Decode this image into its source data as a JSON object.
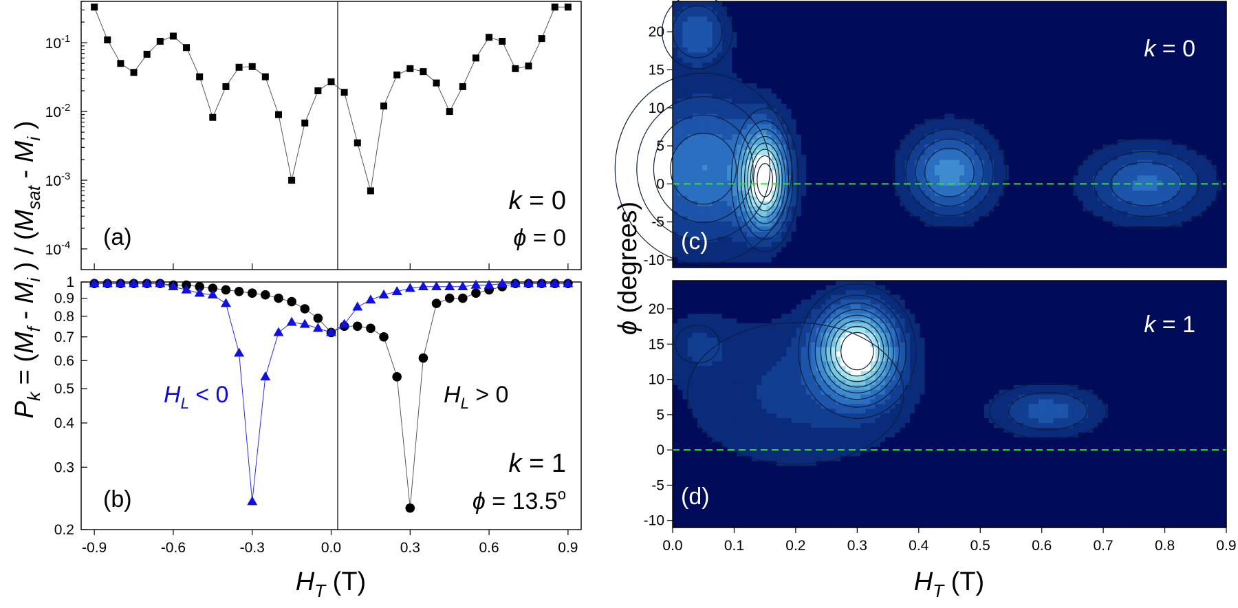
{
  "chart_data": [
    {
      "panel": "(a)",
      "type": "scatter",
      "yscale": "log",
      "xlim": [
        -0.95,
        0.95
      ],
      "ylim": [
        5e-05,
        0.4
      ],
      "yticks": [
        0.0001,
        0.001,
        0.01,
        0.1
      ],
      "ytick_labels": [
        {
          "base": "10",
          "exp": "-4"
        },
        {
          "base": "10",
          "exp": "-3"
        },
        {
          "base": "10",
          "exp": "-2"
        },
        {
          "base": "10",
          "exp": "-1"
        }
      ],
      "ylabel": {
        "pre": "(",
        "m1": "M",
        "s1": "sat",
        "mid": " - ",
        "m2": "M",
        "s2": "i",
        "post": " )"
      },
      "annotations": {
        "label": "(a)",
        "k_var": "k",
        "k_rest": " = 0",
        "phi_var": "ϕ",
        "phi_rest": " = 0"
      },
      "series": [
        {
          "name": "",
          "x": [
            -0.9,
            -0.85,
            -0.8,
            -0.75,
            -0.7,
            -0.65,
            -0.6,
            -0.55,
            -0.5,
            -0.45,
            -0.4,
            -0.35,
            -0.3,
            -0.25,
            -0.2,
            -0.15,
            -0.1,
            -0.05,
            0.0,
            0.05,
            0.1,
            0.15,
            0.2,
            0.25,
            0.3,
            0.35,
            0.4,
            0.45,
            0.5,
            0.55,
            0.6,
            0.65,
            0.7,
            0.75,
            0.8,
            0.85,
            0.9
          ],
          "y": [
            0.33,
            0.11,
            0.05,
            0.037,
            0.068,
            0.105,
            0.125,
            0.085,
            0.032,
            0.0082,
            0.023,
            0.044,
            0.045,
            0.032,
            0.009,
            0.001,
            0.0068,
            0.02,
            0.027,
            0.019,
            0.0035,
            0.0007,
            0.012,
            0.034,
            0.042,
            0.038,
            0.026,
            0.01,
            0.023,
            0.06,
            0.12,
            0.105,
            0.042,
            0.046,
            0.115,
            0.33,
            0.33
          ]
        }
      ]
    },
    {
      "panel": "(b)",
      "type": "scatter",
      "yscale": "log",
      "xlim": [
        -0.95,
        0.95
      ],
      "ylim": [
        0.2,
        1.0
      ],
      "xticks": [
        -0.9,
        -0.6,
        -0.3,
        0.0,
        0.3,
        0.6,
        0.9
      ],
      "xtick_labels": [
        "-0.9",
        "-0.6",
        "-0.3",
        "0.0",
        "0.3",
        "0.6",
        "0.9"
      ],
      "yticks": [
        0.2,
        0.3,
        0.4,
        0.5,
        0.6,
        0.7,
        0.8,
        0.9,
        1
      ],
      "ytick_labels": [
        "0.2",
        "0.3",
        "0.4",
        "0.5",
        "0.6",
        "0.7",
        "0.8",
        "0.9",
        "1"
      ],
      "xlabel": {
        "var": "H",
        "sub": "T",
        "rest": " (T)"
      },
      "ylabel": {
        "var": "P",
        "sub": "k",
        "rest": " = (",
        "m1": "M",
        "s1": "f",
        "mid": " - ",
        "m2": "M",
        "s2": "i",
        "close": " ) / "
      },
      "annotations": {
        "label": "(b)",
        "k_var": "k",
        "k_rest": " = 1",
        "phi_var": "ϕ",
        "phi_rest": " = 13.5",
        "phi_deg": "o",
        "hl_neg": {
          "var": "H",
          "sub": "L",
          "rest": " < 0"
        },
        "hl_pos": {
          "var": "H",
          "sub": "L",
          "rest": " > 0"
        }
      },
      "series": [
        {
          "name": "",
          "marker": "circle",
          "color": "#000000",
          "x": [
            -0.9,
            -0.85,
            -0.8,
            -0.75,
            -0.7,
            -0.65,
            -0.6,
            -0.55,
            -0.5,
            -0.45,
            -0.4,
            -0.35,
            -0.3,
            -0.25,
            -0.2,
            -0.15,
            -0.1,
            -0.05,
            0.0,
            0.05,
            0.1,
            0.15,
            0.2,
            0.25,
            0.3,
            0.35,
            0.4,
            0.45,
            0.5,
            0.55,
            0.6,
            0.65,
            0.7,
            0.75,
            0.8,
            0.85,
            0.9
          ],
          "y": [
            0.99,
            0.99,
            0.99,
            0.99,
            0.99,
            0.99,
            0.98,
            0.98,
            0.97,
            0.96,
            0.95,
            0.94,
            0.93,
            0.92,
            0.9,
            0.88,
            0.84,
            0.79,
            0.72,
            0.75,
            0.75,
            0.74,
            0.7,
            0.54,
            0.23,
            0.61,
            0.87,
            0.9,
            0.9,
            0.93,
            0.95,
            0.97,
            0.99,
            0.99,
            0.99,
            0.99,
            0.99
          ]
        },
        {
          "name": "",
          "marker": "triangle",
          "color": "#1010e0",
          "x": [
            -0.9,
            -0.85,
            -0.8,
            -0.75,
            -0.7,
            -0.65,
            -0.6,
            -0.55,
            -0.5,
            -0.45,
            -0.4,
            -0.35,
            -0.3,
            -0.25,
            -0.2,
            -0.15,
            -0.1,
            -0.05,
            0.0,
            0.05,
            0.1,
            0.15,
            0.2,
            0.25,
            0.3,
            0.35,
            0.4,
            0.45,
            0.5,
            0.55,
            0.6,
            0.65,
            0.7,
            0.75,
            0.8,
            0.85,
            0.9
          ],
          "y": [
            0.99,
            0.99,
            0.99,
            0.99,
            0.99,
            0.99,
            0.97,
            0.95,
            0.93,
            0.92,
            0.87,
            0.63,
            0.24,
            0.54,
            0.72,
            0.77,
            0.76,
            0.74,
            0.72,
            0.76,
            0.85,
            0.89,
            0.92,
            0.94,
            0.96,
            0.97,
            0.97,
            0.97,
            0.97,
            0.98,
            0.98,
            0.99,
            0.99,
            0.99,
            0.99,
            0.99,
            0.99
          ]
        }
      ]
    },
    {
      "panel": "(c)",
      "type": "heatmap",
      "xlim": [
        0.0,
        0.9
      ],
      "ylim": [
        -11,
        24
      ],
      "yticks": [
        -10,
        -5,
        0,
        5,
        10,
        15,
        20
      ],
      "ytick_labels": [
        "-10",
        "-5",
        "0",
        "5",
        "10",
        "15",
        "20"
      ],
      "reference_line": 0,
      "colormap": [
        "#000b5a",
        "#0a2a7a",
        "#123e92",
        "#1c55aa",
        "#2a6fc0",
        "#3e8ccf",
        "#56a8d8",
        "#78c6e0",
        "#a8e4ee",
        "#ffffff"
      ],
      "peaks": [
        {
          "x": 0.15,
          "y": 0.5,
          "amp": 0.9,
          "sx": 0.026,
          "sy": 4.5
        },
        {
          "x": 0.45,
          "y": 1.5,
          "amp": 0.55,
          "sx": 0.05,
          "sy": 4.0
        },
        {
          "x": 0.77,
          "y": 0.0,
          "amp": 0.42,
          "sx": 0.07,
          "sy": 3.5
        },
        {
          "x": 0.04,
          "y": 20,
          "amp": 0.38,
          "sx": 0.035,
          "sy": 3.0
        },
        {
          "x": 0.05,
          "y": 2,
          "amp": 0.5,
          "sx": 0.08,
          "sy": 7.0
        }
      ],
      "annotations": {
        "label": "(c)",
        "k_var": "k",
        "k_rest": " = 0"
      }
    },
    {
      "panel": "(d)",
      "type": "heatmap",
      "xlim": [
        0.0,
        0.9
      ],
      "ylim": [
        -11,
        24
      ],
      "xticks": [
        0.0,
        0.1,
        0.2,
        0.3,
        0.4,
        0.5,
        0.6,
        0.7,
        0.8,
        0.9
      ],
      "xtick_labels": [
        "0.0",
        "0.1",
        "0.2",
        "0.3",
        "0.4",
        "0.5",
        "0.6",
        "0.7",
        "0.8",
        "0.9"
      ],
      "yticks": [
        -10,
        -5,
        0,
        5,
        10,
        15,
        20
      ],
      "ytick_labels": [
        "-10",
        "-5",
        "0",
        "5",
        "10",
        "15",
        "20"
      ],
      "xlabel": {
        "var": "H",
        "sub": "T",
        "rest": " (T)"
      },
      "ylabel": {
        "var": "ϕ",
        "rest": " (degrees)"
      },
      "reference_line": 0,
      "colormap": [
        "#000b5a",
        "#0a2a7a",
        "#123e92",
        "#1c55aa",
        "#2a6fc0",
        "#3e8ccf",
        "#56a8d8",
        "#78c6e0",
        "#a8e4ee",
        "#ffffff"
      ],
      "peaks": [
        {
          "x": 0.3,
          "y": 14,
          "amp": 0.95,
          "sx": 0.045,
          "sy": 4.5
        },
        {
          "x": 0.61,
          "y": 5.5,
          "amp": 0.35,
          "sx": 0.06,
          "sy": 2.5
        },
        {
          "x": 0.2,
          "y": 8,
          "amp": 0.22,
          "sx": 0.14,
          "sy": 8.0
        },
        {
          "x": 0.04,
          "y": 15,
          "amp": 0.15,
          "sx": 0.04,
          "sy": 3.0
        }
      ],
      "annotations": {
        "label": "(d)",
        "k_var": "k",
        "k_rest": " = 1"
      }
    }
  ]
}
